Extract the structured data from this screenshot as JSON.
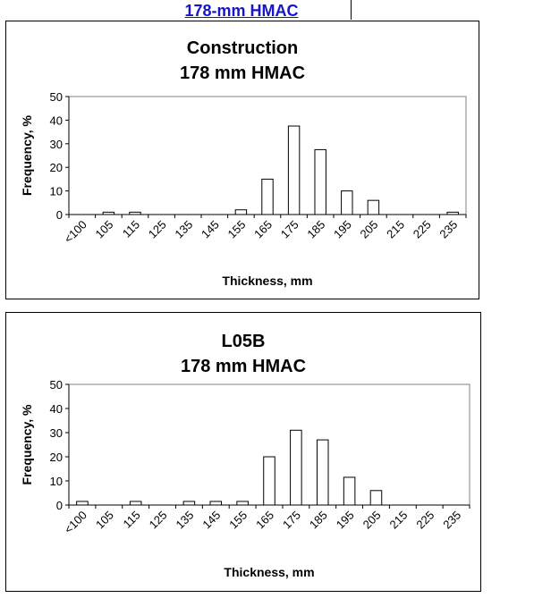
{
  "header": {
    "link_text": "178-mm HMAC"
  },
  "chart_data": [
    {
      "type": "bar",
      "title": "Construction",
      "subtitle": "178 mm HMAC",
      "xlabel": "Thickness, mm",
      "ylabel": "Frequency, %",
      "ylim": [
        0,
        50
      ],
      "yticks": [
        0,
        10,
        20,
        30,
        40,
        50
      ],
      "grid": false,
      "categories": [
        "<100",
        "105",
        "115",
        "125",
        "135",
        "145",
        "155",
        "165",
        "175",
        "185",
        "195",
        "205",
        "215",
        "225",
        "235"
      ],
      "values": [
        0,
        1,
        1,
        0,
        0,
        0,
        2,
        15,
        37.5,
        27.5,
        10,
        6,
        0,
        0,
        1
      ]
    },
    {
      "type": "bar",
      "title": "L05B",
      "subtitle": "178 mm HMAC",
      "xlabel": "Thickness, mm",
      "ylabel": "Frequency, %",
      "ylim": [
        0,
        50
      ],
      "yticks": [
        0,
        10,
        20,
        30,
        40,
        50
      ],
      "grid": false,
      "categories": [
        "<100",
        "105",
        "115",
        "125",
        "135",
        "145",
        "155",
        "165",
        "175",
        "185",
        "195",
        "205",
        "215",
        "225",
        "235"
      ],
      "values": [
        1.5,
        0,
        1.5,
        0,
        1.5,
        1.5,
        1.5,
        20,
        31,
        27,
        11.5,
        6,
        0,
        0,
        0
      ]
    }
  ]
}
